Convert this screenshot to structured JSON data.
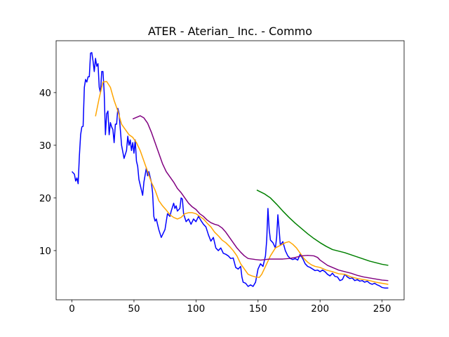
{
  "chart_data": {
    "type": "line",
    "title": "ATER - Aterian_ Inc. - Commo",
    "xlim": [
      -12.75,
      267.75
    ],
    "xticks": [
      0,
      50,
      100,
      150,
      200,
      250
    ],
    "ylim": [
      0.66,
      49.85
    ],
    "yticks": [
      10,
      20,
      30,
      40
    ],
    "series": [
      {
        "color": "#0000ff",
        "x": [
          0,
          2,
          3,
          4,
          5,
          6,
          7,
          8,
          9,
          10,
          11,
          12,
          13,
          14,
          15,
          16,
          17,
          18,
          19,
          20,
          21,
          22,
          23,
          24,
          25,
          26,
          27,
          28,
          29,
          30,
          31,
          32,
          33,
          34,
          35,
          36,
          37,
          38,
          40,
          42,
          44,
          45,
          46,
          47,
          48,
          49,
          50,
          51,
          52,
          53,
          54,
          55,
          57,
          58,
          60,
          61,
          62,
          63,
          64,
          65,
          66,
          67,
          68,
          70,
          72,
          73,
          75,
          77,
          79,
          80,
          82,
          83,
          84,
          85,
          87,
          88,
          89,
          90,
          92,
          94,
          96,
          98,
          100,
          102,
          104,
          106,
          108,
          110,
          112,
          114,
          116,
          118,
          120,
          122,
          124,
          126,
          128,
          130,
          132,
          134,
          136,
          137,
          138,
          140,
          142,
          144,
          146,
          148,
          150,
          152,
          154,
          156,
          157,
          158,
          159,
          160,
          162,
          164,
          165,
          166,
          167,
          168,
          170,
          172,
          174,
          176,
          178,
          180,
          182,
          184,
          186,
          188,
          190,
          192,
          194,
          196,
          198,
          200,
          202,
          204,
          206,
          208,
          210,
          212,
          214,
          216,
          218,
          220,
          222,
          224,
          226,
          228,
          230,
          232,
          234,
          236,
          238,
          240,
          242,
          244,
          246,
          248,
          250,
          252,
          255
        ],
        "values": [
          25,
          24.5,
          23.2,
          23.8,
          22.7,
          28,
          32,
          33.5,
          33.6,
          41,
          42.5,
          42,
          43,
          43,
          47.5,
          47.6,
          46,
          44,
          46.5,
          45,
          45.5,
          41,
          40,
          44,
          44,
          40,
          32,
          36,
          36.5,
          32,
          34.3,
          33.5,
          33,
          30.5,
          34,
          34,
          37,
          36,
          30,
          27.5,
          29,
          31.7,
          30,
          31,
          29,
          30.5,
          28.5,
          31,
          27,
          26,
          23.5,
          22.5,
          20.5,
          23,
          25.7,
          24.2,
          25,
          24,
          23,
          21,
          16.5,
          15.6,
          16,
          14,
          12.5,
          13,
          14,
          17,
          16.5,
          17.5,
          19,
          18,
          18.5,
          17.5,
          18,
          20,
          19.8,
          17,
          15.5,
          16,
          15,
          16,
          15.5,
          16.5,
          15.7,
          15,
          14.5,
          13,
          11.8,
          12.5,
          10.5,
          10,
          10.5,
          9.5,
          9.3,
          9,
          8.5,
          8.6,
          6.8,
          6.5,
          7,
          5,
          4,
          3.8,
          3.2,
          3.5,
          3.2,
          4,
          6.5,
          7.5,
          7,
          9,
          12,
          18,
          14,
          12,
          11.5,
          10.5,
          12.5,
          16.8,
          14,
          11,
          11.7,
          10,
          9,
          8.5,
          8.3,
          8.5,
          8.2,
          9.3,
          8.5,
          7.5,
          7,
          6.8,
          6.5,
          6.2,
          6.3,
          6,
          6.3,
          6,
          5.5,
          5.2,
          5.7,
          5.1,
          5,
          4.3,
          4.5,
          5.5,
          5,
          4.7,
          4.8,
          4.3,
          4.5,
          4.2,
          4.3,
          4,
          4.2,
          3.8,
          3.6,
          3.8,
          3.5,
          3.3,
          3,
          2.9,
          2.9
        ]
      },
      {
        "color": "#ffa500",
        "x": [
          19,
          22,
          25,
          28,
          31,
          34,
          37,
          40,
          43,
          46,
          49,
          52,
          55,
          58,
          61,
          64,
          67,
          70,
          73,
          76,
          79,
          82,
          85,
          88,
          91,
          94,
          97,
          100,
          103,
          106,
          109,
          112,
          115,
          118,
          121,
          124,
          127,
          130,
          133,
          136,
          139,
          142,
          145,
          148,
          151,
          153,
          156,
          160,
          164,
          168,
          172,
          175,
          178,
          181,
          184,
          187,
          190,
          193,
          196,
          200,
          205,
          210,
          215,
          220,
          225,
          230,
          235,
          240,
          245,
          250,
          255
        ],
        "values": [
          35.5,
          39,
          42,
          42.1,
          41,
          38.5,
          36.5,
          34,
          33,
          32,
          31.5,
          30.5,
          29,
          27,
          25,
          23,
          21.5,
          19.5,
          18.5,
          17.7,
          16.8,
          16.3,
          16,
          16.3,
          17,
          17.2,
          17.2,
          17,
          16.5,
          16,
          15.2,
          14.5,
          13.5,
          12.8,
          12,
          11.5,
          10.8,
          10,
          9,
          7.5,
          6.5,
          5.5,
          5.2,
          5,
          4.9,
          5.5,
          7,
          9,
          10.5,
          11,
          11.5,
          11.7,
          11.2,
          10.5,
          9.5,
          8.5,
          7.8,
          7.3,
          7,
          6.8,
          6.3,
          6,
          5.6,
          5.5,
          5,
          4.7,
          4.5,
          4.3,
          4,
          3.8,
          3.6
        ]
      },
      {
        "color": "#800080",
        "x": [
          49,
          52,
          55,
          58,
          61,
          64,
          67,
          70,
          73,
          76,
          79,
          82,
          85,
          88,
          91,
          94,
          97,
          100,
          103,
          106,
          109,
          112,
          115,
          118,
          121,
          124,
          127,
          130,
          133,
          136,
          139,
          142,
          145,
          148,
          152,
          156,
          160,
          165,
          170,
          175,
          180,
          185,
          190,
          195,
          198,
          200,
          203,
          206,
          210,
          215,
          220,
          225,
          230,
          235,
          240,
          245,
          250,
          255
        ],
        "values": [
          35,
          35.3,
          35.6,
          35.2,
          34.2,
          32.5,
          30.5,
          28.5,
          26.5,
          25,
          24,
          23,
          21.8,
          21,
          20,
          19,
          18.3,
          17.8,
          17,
          16.5,
          15.8,
          15.3,
          15,
          14.8,
          14.3,
          13.5,
          12.5,
          11.5,
          10.5,
          9.7,
          9,
          8.5,
          8.4,
          8.3,
          8.2,
          8.3,
          8.4,
          8.4,
          8.4,
          8.5,
          8.7,
          9,
          9.1,
          9,
          8.7,
          8.2,
          7.7,
          7.2,
          6.8,
          6.3,
          6,
          5.7,
          5.3,
          5,
          4.8,
          4.6,
          4.4,
          4.3
        ]
      },
      {
        "color": "#008000",
        "x": [
          149,
          155,
          160,
          165,
          170,
          175,
          180,
          185,
          190,
          195,
          200,
          205,
          210,
          215,
          220,
          225,
          230,
          235,
          240,
          245,
          250,
          255
        ],
        "values": [
          21.5,
          20.8,
          20,
          18.8,
          17.5,
          16.3,
          15.2,
          14.2,
          13.2,
          12.3,
          11.5,
          10.8,
          10.2,
          9.9,
          9.6,
          9.2,
          8.8,
          8.4,
          8,
          7.7,
          7.4,
          7.2
        ]
      }
    ]
  }
}
